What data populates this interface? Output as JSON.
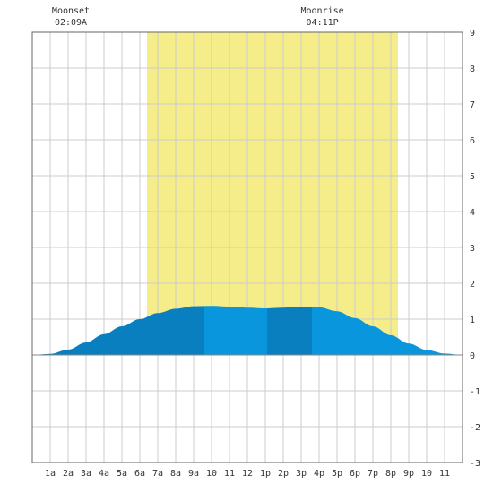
{
  "chart_data": {
    "type": "area",
    "title": "",
    "xlabel": "",
    "ylabel": "",
    "xlim": [
      0,
      24
    ],
    "ylim": [
      -3,
      9
    ],
    "grid": true,
    "x_ticks": [
      "1a",
      "2a",
      "3a",
      "4a",
      "5a",
      "6a",
      "7a",
      "8a",
      "9a",
      "10",
      "11",
      "12",
      "1p",
      "2p",
      "3p",
      "4p",
      "5p",
      "6p",
      "7p",
      "8p",
      "9p",
      "10",
      "11"
    ],
    "y_ticks": [
      9,
      8,
      7,
      6,
      5,
      4,
      3,
      2,
      1,
      0,
      -1,
      -2,
      -3
    ],
    "daylight_hours": [
      6.4,
      20.4
    ],
    "moon_events": [
      {
        "label": "Moonset",
        "time": "02:09A",
        "hour": 2.15
      },
      {
        "label": "Moonrise",
        "time": "04:11P",
        "hour": 16.18
      }
    ],
    "series": [
      {
        "x": [
          0,
          1,
          2,
          3,
          4,
          5,
          6,
          7,
          8,
          9,
          10,
          11,
          12,
          13,
          14,
          15,
          16,
          17,
          18,
          19,
          20,
          21,
          22,
          23,
          24
        ],
        "values": [
          0.0,
          0.03,
          0.15,
          0.35,
          0.58,
          0.8,
          1.0,
          1.17,
          1.29,
          1.36,
          1.37,
          1.35,
          1.32,
          1.3,
          1.32,
          1.35,
          1.33,
          1.22,
          1.03,
          0.8,
          0.55,
          0.32,
          0.14,
          0.04,
          0.0
        ]
      }
    ],
    "shade_bands": [
      {
        "from": 0,
        "to": 9.6,
        "color": "#0a7fc0"
      },
      {
        "from": 9.6,
        "to": 13.1,
        "color": "#0a96dc"
      },
      {
        "from": 13.1,
        "to": 15.6,
        "color": "#0a7fc0"
      },
      {
        "from": 15.6,
        "to": 24,
        "color": "#0a96dc"
      }
    ],
    "colors": {
      "daylight": "#f5ec8a",
      "grid": "#cccccc",
      "axis": "#666666"
    }
  }
}
